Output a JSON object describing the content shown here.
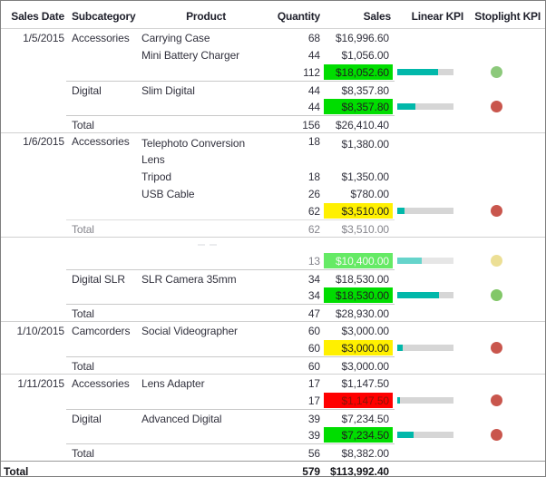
{
  "columns": [
    "Sales Date",
    "Subcategory",
    "Product",
    "Quantity",
    "Sales",
    "Linear KPI",
    "Stoplight KPI"
  ],
  "colors": {
    "kpi_bar_fill": "#01B8AA",
    "kpi_bar_track": "#D6D6D6"
  },
  "rows": [
    {
      "date": "1/5/2015",
      "subcategory": "Accessories",
      "product": "Carrying Case",
      "quantity": "68",
      "sales": "$16,996.60"
    },
    {
      "product": "Mini Battery Charger",
      "quantity": "44",
      "sales": "$1,056.00"
    },
    {
      "quantity": "112",
      "sales": "$18,052.60",
      "sales_bg": "#00DD00",
      "sales_color": "#1F1F1F",
      "bar_pct": "72%",
      "dot_color": "#8CC97B"
    },
    {
      "subcategory": "Digital",
      "product": "Slim Digital",
      "quantity": "44",
      "sales": "$8,357.80"
    },
    {
      "quantity": "44",
      "sales": "$8,357.80",
      "sales_bg": "#00DD00",
      "sales_color": "#1F1F1F",
      "bar_pct": "33%",
      "dot_color": "#C9564D"
    },
    {
      "label": "Total",
      "quantity": "156",
      "sales": "$26,410.40"
    },
    {
      "date": "1/6/2015",
      "subcategory": "Accessories",
      "product": "Telephoto Conversion\nLens",
      "quantity": "18",
      "sales": "$1,380.00"
    },
    {
      "product": "Tripod",
      "quantity": "18",
      "sales": "$1,350.00"
    },
    {
      "product": "USB Cable",
      "quantity": "26",
      "sales": "$780.00"
    },
    {
      "quantity": "62",
      "sales": "$3,510.00",
      "sales_bg": "#FFF000",
      "sales_color": "#1F1F1F",
      "bar_pct": "13%",
      "dot_color": "#C9564D"
    },
    {
      "label": "Total",
      "quantity": "62",
      "sales": "$3,510.00"
    },
    {},
    {
      "quantity": "13",
      "sales": "$10,400.00",
      "sales_bg": "#00DD00",
      "sales_color": "#F2F7EE",
      "bar_pct": "43%",
      "dot_color": "#DFC94F"
    },
    {
      "subcategory": "Digital SLR",
      "product": "SLR Camera 35mm",
      "quantity": "34",
      "sales": "$18,530.00"
    },
    {
      "quantity": "34",
      "sales": "$18,530.00",
      "sales_bg": "#00DD00",
      "sales_color": "#1F1F1F",
      "bar_pct": "74%",
      "dot_color": "#82C768"
    },
    {
      "label": "Total",
      "quantity": "47",
      "sales": "$28,930.00"
    },
    {
      "date": "1/10/2015",
      "subcategory": "Camcorders",
      "product": "Social Videographer",
      "quantity": "60",
      "sales": "$3,000.00"
    },
    {
      "quantity": "60",
      "sales": "$3,000.00",
      "sales_bg": "#FFF000",
      "sales_color": "#1F1F1F",
      "bar_pct": "9%",
      "dot_color": "#C9564D"
    },
    {
      "label": "Total",
      "quantity": "60",
      "sales": "$3,000.00"
    },
    {
      "date": "1/11/2015",
      "subcategory": "Accessories",
      "product": "Lens Adapter",
      "quantity": "17",
      "sales": "$1,147.50"
    },
    {
      "quantity": "17",
      "sales": "$1,147.50",
      "sales_bg": "#FF0000",
      "sales_color": "#8A1406",
      "bar_pct": "5%",
      "dot_color": "#C9564D"
    },
    {
      "subcategory": "Digital",
      "product": "Advanced Digital",
      "quantity": "39",
      "sales": "$7,234.50"
    },
    {
      "quantity": "39",
      "sales": "$7,234.50",
      "sales_bg": "#00DD00",
      "sales_color": "#1F1F1F",
      "bar_pct": "29%",
      "dot_color": "#C9564D"
    },
    {
      "label": "Total",
      "quantity": "56",
      "sales": "$8,382.00"
    },
    {
      "label": "Total",
      "quantity": "579",
      "sales": "$113,992.40"
    }
  ]
}
